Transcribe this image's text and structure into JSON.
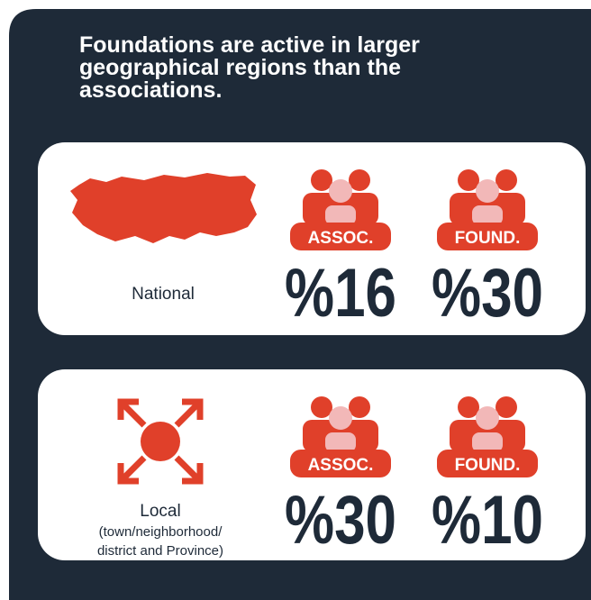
{
  "title": [
    "Foundations are active in larger",
    "geographical regions than the",
    "associations."
  ],
  "panels": [
    {
      "label": "National",
      "items": [
        {
          "badge": "ASSOC.",
          "value": "%16"
        },
        {
          "badge": "FOUND.",
          "value": "%30"
        }
      ]
    },
    {
      "label": "Local",
      "detail": [
        "(town/neighborhood/",
        "district and Province)"
      ],
      "items": [
        {
          "badge": "ASSOC.",
          "value": "%30"
        },
        {
          "badge": "FOUND.",
          "value": "%10"
        }
      ]
    }
  ]
}
